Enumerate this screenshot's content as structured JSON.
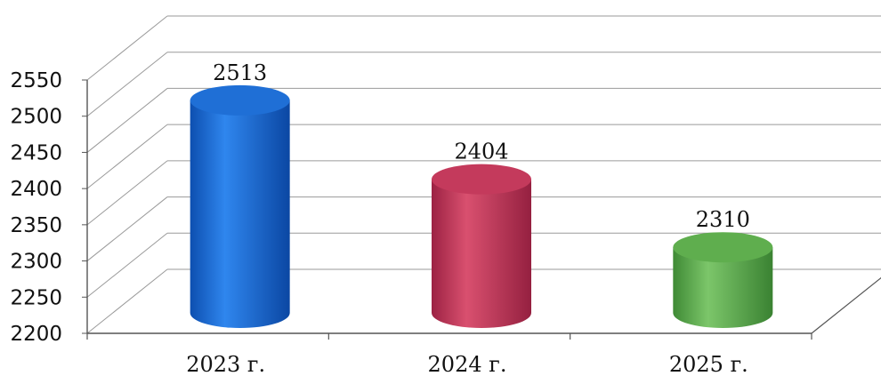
{
  "chart_data": {
    "type": "bar",
    "style": "3d-cylinder",
    "categories": [
      "2023 г.",
      "2024 г.",
      "2025 г."
    ],
    "values": [
      2513,
      2404,
      2310
    ],
    "data_labels": [
      "2513",
      "2404",
      "2310"
    ],
    "colors": [
      "#1f6fd6",
      "#c43a5c",
      "#5fae4e"
    ],
    "ylim": [
      2200,
      2550
    ],
    "yticks": [
      2200,
      2250,
      2300,
      2350,
      2400,
      2450,
      2500,
      2550
    ],
    "grid": true,
    "legend": "none"
  }
}
